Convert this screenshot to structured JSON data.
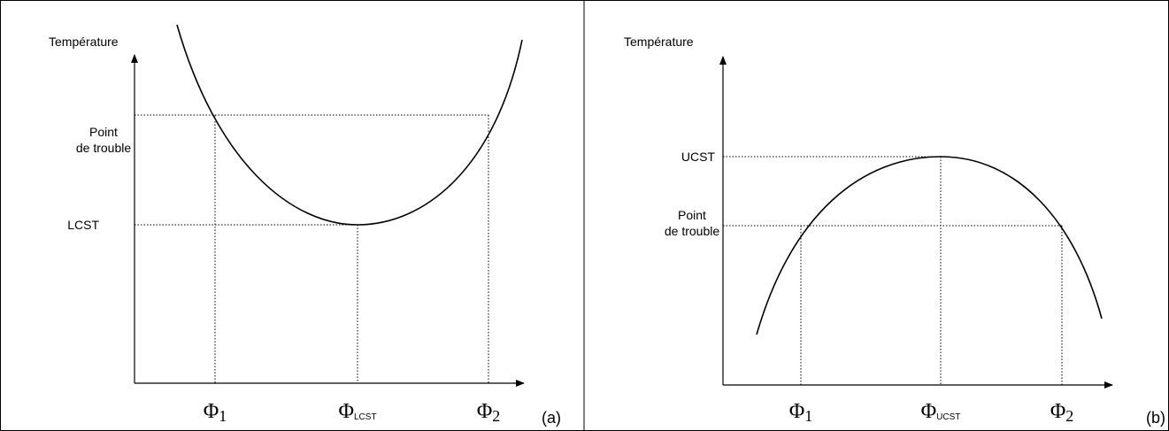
{
  "panels": [
    {
      "y_axis_label": "Température",
      "level_high": [
        "Point",
        "de trouble"
      ],
      "level_low": "LCST",
      "x_labels": [
        {
          "symbol": "Φ",
          "subscript": "1"
        },
        {
          "symbol": "Φ",
          "subscript": "LCST"
        },
        {
          "symbol": "Φ",
          "subscript": "2"
        }
      ],
      "tag": "(a)"
    },
    {
      "y_axis_label": "Température",
      "level_high": "UCST",
      "level_low": [
        "Point",
        "de trouble"
      ],
      "x_labels": [
        {
          "symbol": "Φ",
          "subscript": "1"
        },
        {
          "symbol": "Φ",
          "subscript": "UCST"
        },
        {
          "symbol": "Φ",
          "subscript": "2"
        }
      ],
      "tag": "(b)"
    }
  ]
}
